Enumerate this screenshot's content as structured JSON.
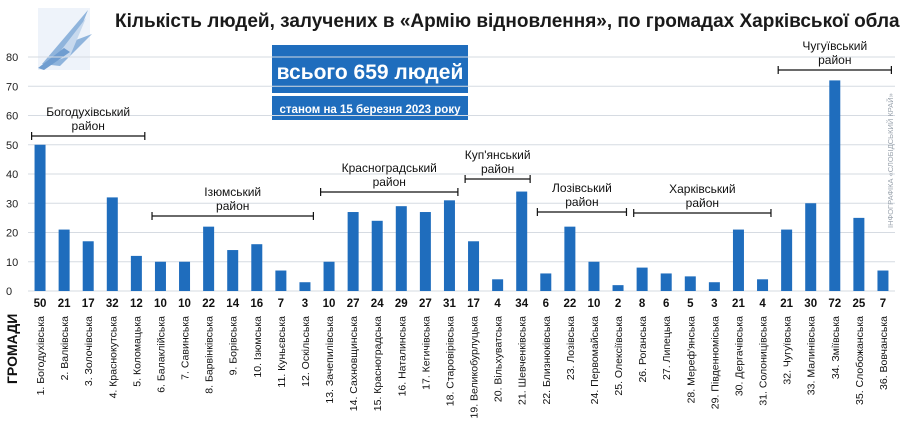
{
  "title": "Кількість людей, залучених в «Армію відновлення», по громадах Харківської області",
  "total_label": "всього 659 людей",
  "date_label": "станом на 15 березня 2023 року",
  "x_axis_label": "ГРОМАДИ",
  "side_credit": "ІНФОГРАФІКА «СЛОБІДСЬКИЙ КРАЙ»",
  "colors": {
    "bar": "#1f6dbd",
    "banner": "#1f6dbd",
    "logo": "#8fb4dc"
  },
  "chart_data": {
    "type": "bar",
    "title": "Кількість людей, залучених в «Армію відновлення», по громадах Харківської області",
    "xlabel": "ГРОМАДИ",
    "ylabel": "",
    "ylim": [
      0,
      80
    ],
    "yticks": [
      0,
      10,
      20,
      30,
      40,
      50,
      60,
      70,
      80
    ],
    "grid": true,
    "categories": [
      "1. Богодухівська",
      "2. Валківська",
      "3. Золочівська",
      "4. Краснокутська",
      "5. Коломацька",
      "6. Балаклійська",
      "7. Савинська",
      "8. Барвінківська",
      "9. Борівська",
      "10. Ізюмська",
      "11. Куньєвська",
      "12. Оскільська",
      "13. Зачепилівська",
      "14. Сахновщинська",
      "15. Красноградська",
      "16. Наталинська",
      "17. Кегичівська",
      "18. Старовірівська",
      "19. Великобурлуцька",
      "20. Вільхуватська",
      "21. Шевченківська",
      "22. Близнюківська",
      "23. Лозівська",
      "24. Первомайська",
      "25. Олексіївська",
      "26. Роганська",
      "27. Липецька",
      "28. Мереф'янська",
      "29. Південноміська",
      "30. Дергачівська",
      "31. Солоницівська",
      "32. Чугуївська",
      "33. Малинівська",
      "34. Зміївська",
      "35. Слобожанська",
      "36. Вовчанська"
    ],
    "values": [
      50,
      21,
      17,
      32,
      12,
      10,
      10,
      22,
      14,
      16,
      7,
      3,
      10,
      27,
      24,
      29,
      27,
      31,
      17,
      4,
      34,
      6,
      22,
      10,
      2,
      8,
      6,
      5,
      3,
      21,
      4,
      21,
      30,
      72,
      25,
      7
    ],
    "value_labels": [
      "50",
      "21",
      "17",
      "32",
      "12",
      "10",
      "10",
      "22",
      "14",
      "16",
      "7",
      "3",
      "10",
      "27",
      "24",
      "29",
      "27",
      "31",
      "17",
      "4",
      "34",
      "6",
      "22",
      "10",
      "2",
      "8",
      "6",
      "5",
      "3",
      "21",
      "4",
      "21",
      "30",
      "72",
      "25",
      "7"
    ],
    "districts": [
      {
        "lines": [
          "Богодухівський",
          "район"
        ],
        "from": 0,
        "to": 4
      },
      {
        "lines": [
          "Ізюмський",
          "район"
        ],
        "from": 5,
        "to": 11
      },
      {
        "lines": [
          "Красноградський",
          "район"
        ],
        "from": 12,
        "to": 17
      },
      {
        "lines": [
          "Куп'янський",
          "район"
        ],
        "from": 18,
        "to": 20
      },
      {
        "lines": [
          "Лозівський",
          "район"
        ],
        "from": 21,
        "to": 24
      },
      {
        "lines": [
          "Харківський",
          "район"
        ],
        "from": 25,
        "to": 30
      },
      {
        "lines": [
          "Чугуївський",
          "район"
        ],
        "from": 31,
        "to": 35
      }
    ]
  }
}
